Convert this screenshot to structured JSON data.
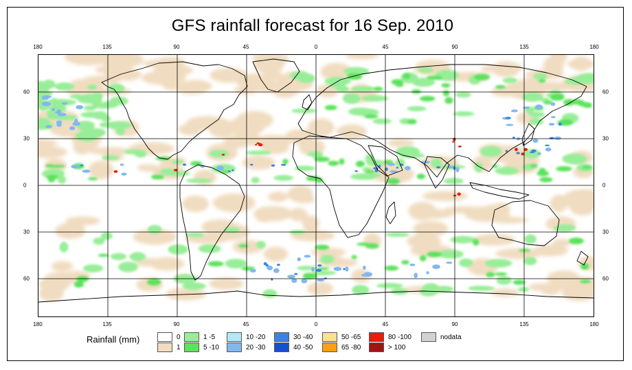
{
  "title": "GFS rainfall forecast for 16 Sep. 2010",
  "lon_ticks": [
    "180",
    "135",
    "90",
    "45",
    "0",
    "45",
    "90",
    "135",
    "180"
  ],
  "lat_ticks": [
    "60",
    "30",
    "0",
    "30",
    "60"
  ],
  "legend": {
    "title": "Rainfall (mm)",
    "items": [
      {
        "label": "0",
        "color": "#ffffff"
      },
      {
        "label": "1",
        "color": "#f0dcc0"
      },
      {
        "label": "1 -5",
        "color": "#98ee98"
      },
      {
        "label": "5 -10",
        "color": "#5ce25c"
      },
      {
        "label": "10 -20",
        "color": "#b4e8f8"
      },
      {
        "label": "20 -30",
        "color": "#82b8f0"
      },
      {
        "label": "30 -40",
        "color": "#3c82e6"
      },
      {
        "label": "40 -50",
        "color": "#1450d2"
      },
      {
        "label": "50 -65",
        "color": "#ffe08c"
      },
      {
        "label": "65 -80",
        "color": "#ffa014"
      },
      {
        "label": "80 -100",
        "color": "#e61e0a"
      },
      {
        "label": "> 100",
        "color": "#a01414"
      },
      {
        "label": "nodata",
        "color": "#d2d2d2"
      }
    ]
  },
  "colors": {
    "ocean": "#ffffff",
    "light": "#f0dcc0",
    "green1": "#98ee98",
    "green2": "#5ce25c",
    "blue1": "#b4e8f8",
    "blue2": "#82b8f0",
    "blue3": "#3c82e6",
    "red": "#e61e0a",
    "grid": "#000000"
  }
}
